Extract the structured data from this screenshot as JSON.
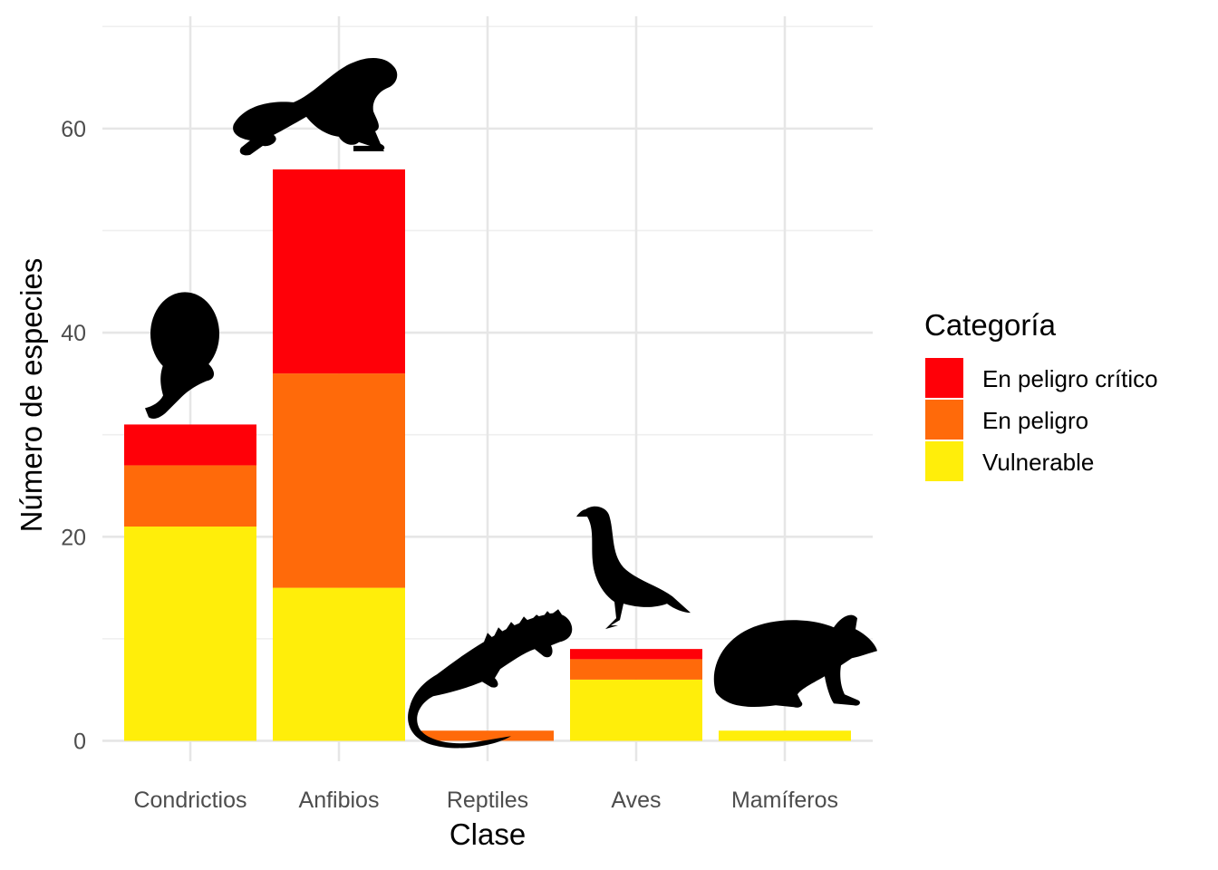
{
  "chart_data": {
    "type": "bar",
    "stacked": true,
    "categories": [
      "Condrictios",
      "Anfibios",
      "Reptiles",
      "Aves",
      "Mamíferos"
    ],
    "series": [
      {
        "name": "Vulnerable",
        "color": "#FFEE0A",
        "values": [
          21,
          15,
          0,
          6,
          1
        ]
      },
      {
        "name": "En peligro",
        "color": "#FF6A0A",
        "values": [
          6,
          21,
          1,
          2,
          0
        ]
      },
      {
        "name": "En peligro crítico",
        "color": "#FF0008",
        "values": [
          4,
          20,
          0,
          1,
          0
        ]
      }
    ],
    "xlabel": "Clase",
    "ylabel": "Número de especies",
    "ylim": [
      -2,
      71
    ],
    "yticks": [
      0,
      20,
      40,
      60
    ],
    "grid": true,
    "legend": {
      "title": "Categoría",
      "position": "right",
      "order": [
        "En peligro crítico",
        "En peligro",
        "Vulnerable"
      ]
    },
    "icons": [
      "shark-ray-icon",
      "frog-icon",
      "iguana-icon",
      "bird-icon",
      "rodent-icon"
    ]
  }
}
